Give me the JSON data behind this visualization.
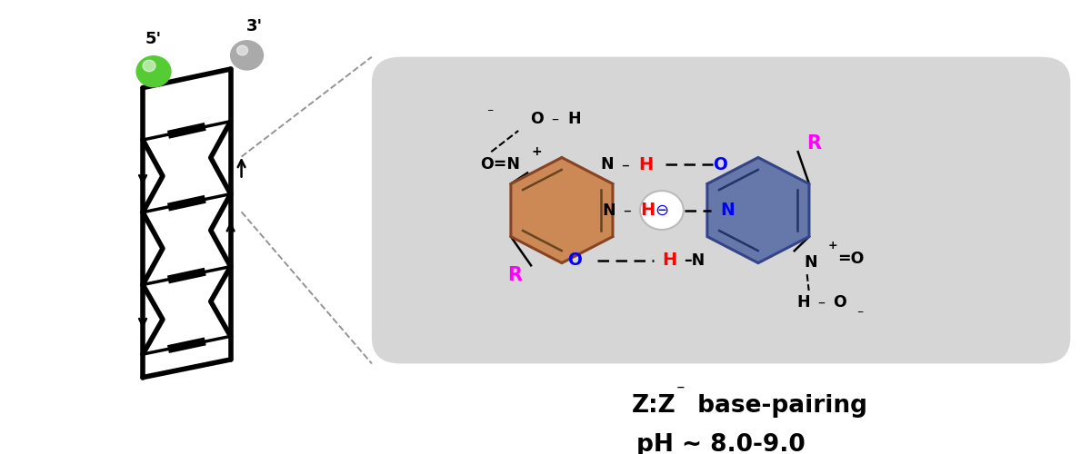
{
  "bg_color": "#ffffff",
  "box_facecolor": "#d6d6d6",
  "orange_ring_color": "#cc8855",
  "orange_edge_color": "#884422",
  "blue_ring_color": "#6677aa",
  "blue_edge_color": "#334488",
  "green_sphere_color": "#55cc33",
  "gray_sphere_color": "#aaaaaa",
  "title_line1": "Z:Z",
  "title_minus": "⁻",
  "title_rest": " base-pairing",
  "title_line2": "pH ~ 8.0-9.0"
}
